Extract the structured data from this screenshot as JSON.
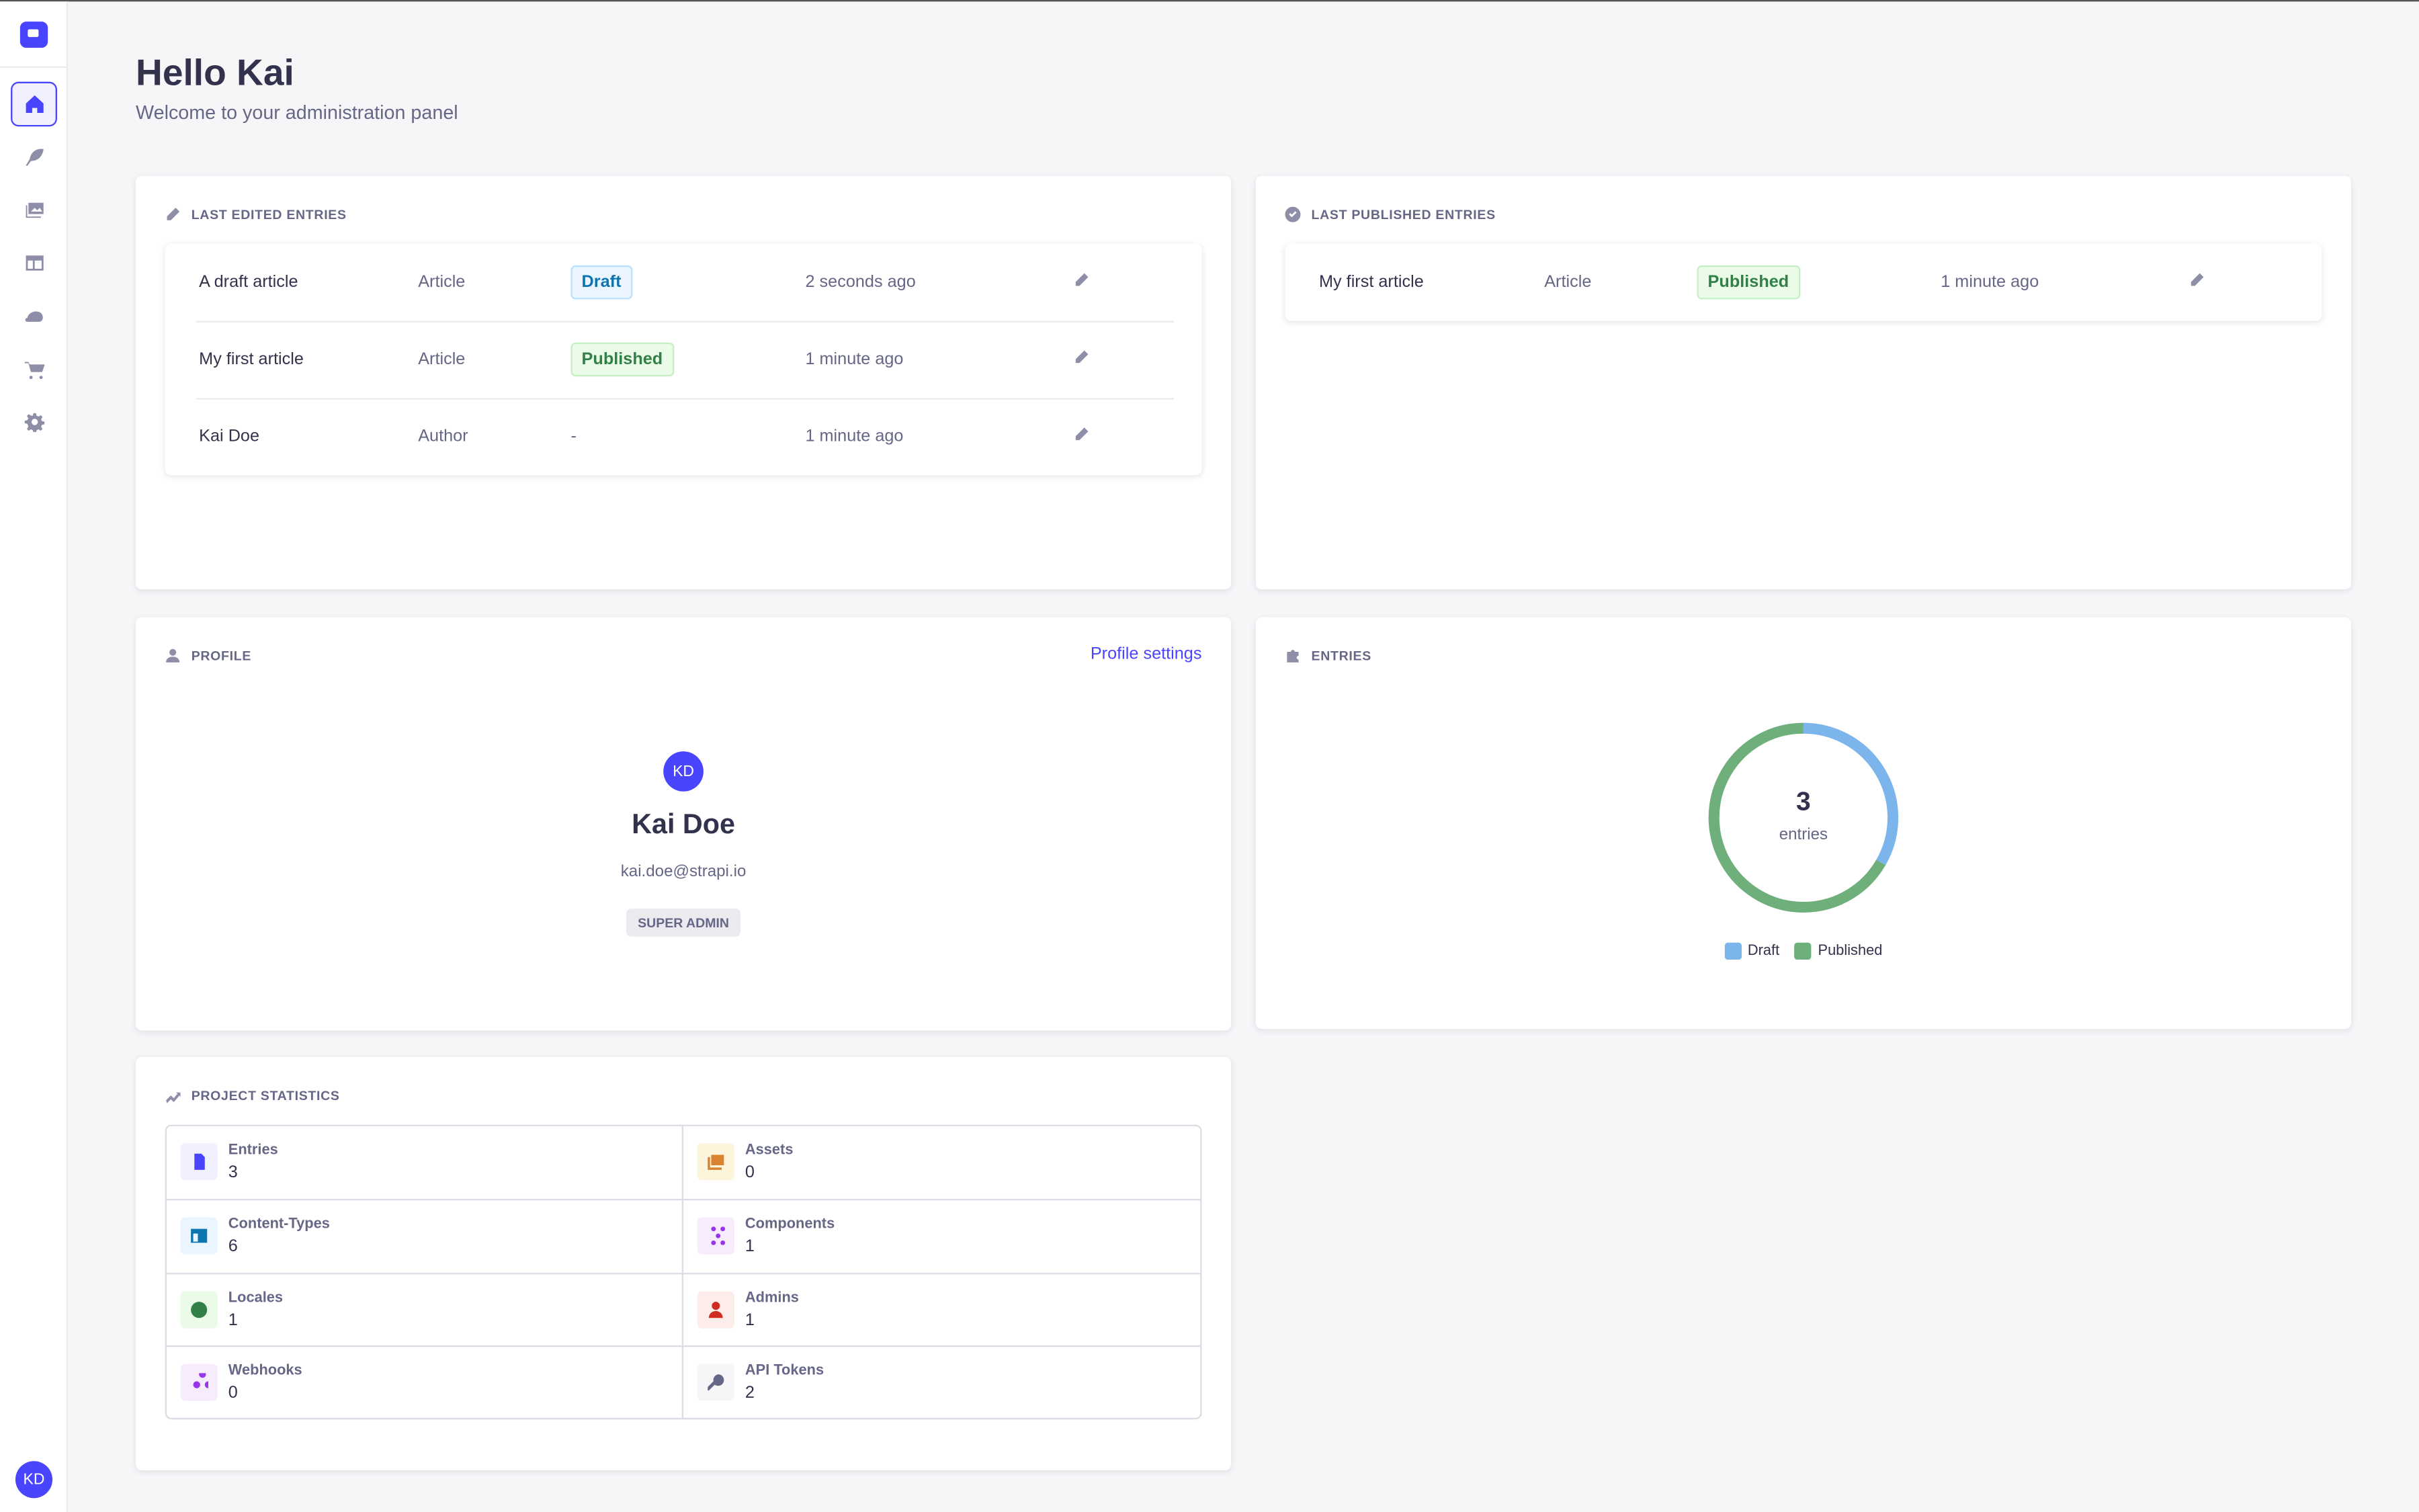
{
  "sidebar": {
    "items": [
      {
        "name": "home",
        "active": true
      },
      {
        "name": "content-manager"
      },
      {
        "name": "media-library"
      },
      {
        "name": "content-type-builder"
      },
      {
        "name": "cloud"
      },
      {
        "name": "marketplace"
      },
      {
        "name": "settings"
      }
    ],
    "user_initials": "KD"
  },
  "header": {
    "title": "Hello Kai",
    "subtitle": "Welcome to your administration panel"
  },
  "last_edited": {
    "title": "LAST EDITED ENTRIES",
    "rows": [
      {
        "name": "A draft article",
        "type": "Article",
        "status": "Draft",
        "time": "2 seconds ago"
      },
      {
        "name": "My first article",
        "type": "Article",
        "status": "Published",
        "time": "1 minute ago"
      },
      {
        "name": "Kai Doe",
        "type": "Author",
        "status": "-",
        "time": "1 minute ago"
      }
    ]
  },
  "last_published": {
    "title": "LAST PUBLISHED ENTRIES",
    "rows": [
      {
        "name": "My first article",
        "type": "Article",
        "status": "Published",
        "time": "1 minute ago"
      }
    ]
  },
  "profile": {
    "title": "PROFILE",
    "settings_link": "Profile settings",
    "initials": "KD",
    "name": "Kai Doe",
    "email": "kai.doe@strapi.io",
    "role": "SUPER ADMIN"
  },
  "entries": {
    "title": "ENTRIES",
    "chart_data": {
      "type": "pie",
      "categories": [
        "Draft",
        "Published"
      ],
      "values": [
        1,
        2
      ],
      "colors": [
        "#7cb5ec",
        "#6faf7b"
      ],
      "total": "3",
      "total_label": "entries",
      "legend": "bottom"
    }
  },
  "project_stats": {
    "title": "PROJECT STATISTICS",
    "items": [
      {
        "label": "Entries",
        "value": "3",
        "icon": "file-icon",
        "bg": "#f0f0ff",
        "fg": "#4945ff"
      },
      {
        "label": "Assets",
        "value": "0",
        "icon": "images-icon",
        "bg": "#fdf4dc",
        "fg": "#d9822f"
      },
      {
        "label": "Content-Types",
        "value": "6",
        "icon": "layout-icon",
        "bg": "#eaf5ff",
        "fg": "#0c75af"
      },
      {
        "label": "Components",
        "value": "1",
        "icon": "puzzle-icon",
        "bg": "#f6ecfc",
        "fg": "#9736e8"
      },
      {
        "label": "Locales",
        "value": "1",
        "icon": "globe-icon",
        "bg": "#eafbe7",
        "fg": "#328048"
      },
      {
        "label": "Admins",
        "value": "1",
        "icon": "user-icon",
        "bg": "#fcecea",
        "fg": "#d02b20"
      },
      {
        "label": "Webhooks",
        "value": "0",
        "icon": "webhook-icon",
        "bg": "#f6ecfc",
        "fg": "#9736e8"
      },
      {
        "label": "API Tokens",
        "value": "2",
        "icon": "key-icon",
        "bg": "#f6f6f9",
        "fg": "#666687"
      }
    ]
  }
}
